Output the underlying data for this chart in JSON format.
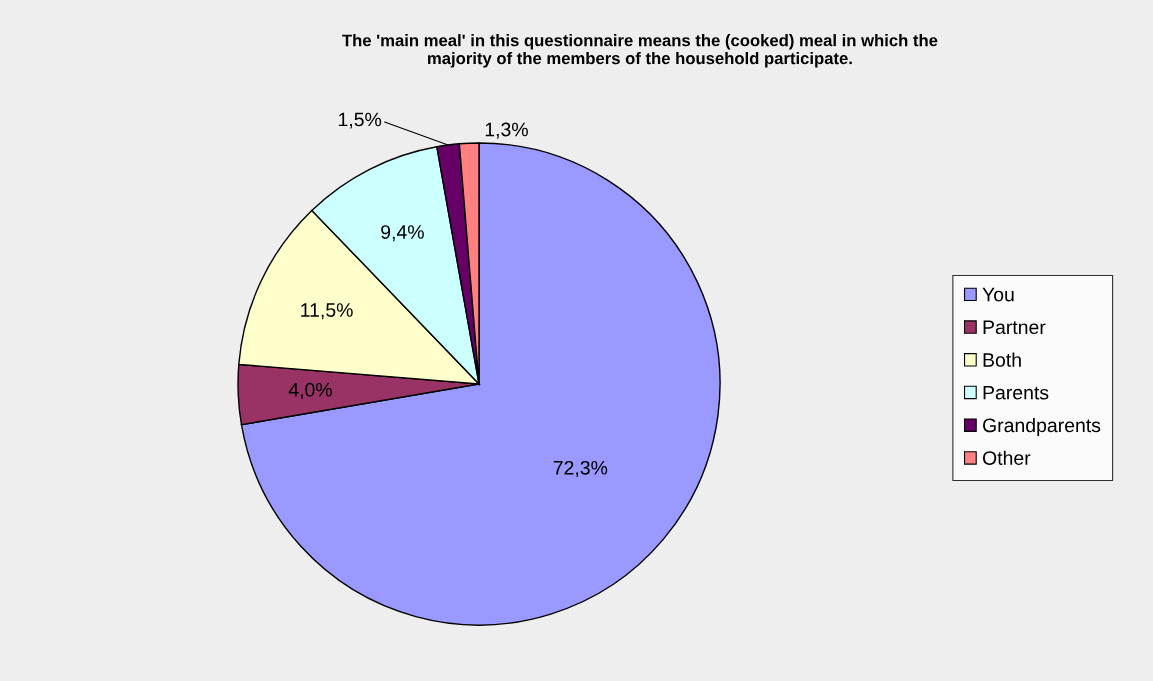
{
  "chart_data": {
    "type": "pie",
    "title": "The 'main meal' in this questionnaire means the (cooked) meal in which the\nmajority of the members of the household participate.",
    "categories": [
      "You",
      "Partner",
      "Both",
      "Parents",
      "Grandparents",
      "Other"
    ],
    "values": [
      72.3,
      4.0,
      11.5,
      9.4,
      1.5,
      1.3
    ],
    "value_labels": [
      "72,3%",
      "4,0%",
      "11,5%",
      "9,4%",
      "1,5%",
      "1,3%"
    ],
    "colors": [
      "#9999ff",
      "#993366",
      "#ffffcc",
      "#ccffff",
      "#660066",
      "#ff8080"
    ],
    "legend": "right"
  }
}
